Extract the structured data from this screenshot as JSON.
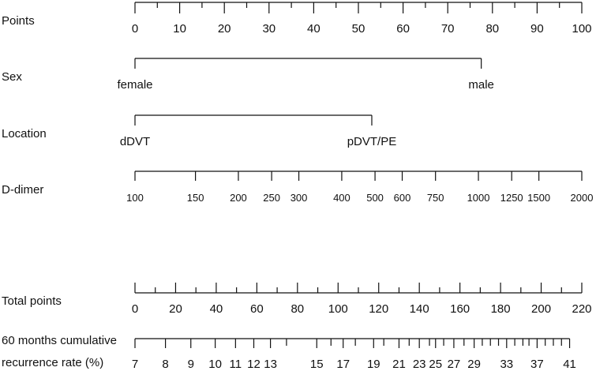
{
  "chart_data": {
    "type": "nomogram",
    "title": "",
    "rows": [
      {
        "key": "points",
        "label": "Points",
        "axis_type": "linear",
        "range": [
          0,
          100
        ],
        "ticks": [
          0,
          10,
          20,
          30,
          40,
          50,
          60,
          70,
          80,
          90,
          100
        ],
        "tick_labels": [
          "0",
          "10",
          "20",
          "30",
          "40",
          "50",
          "60",
          "70",
          "80",
          "90",
          "100"
        ],
        "minor_step": 5
      },
      {
        "key": "sex",
        "label": "Sex",
        "axis_type": "categorical",
        "levels": [
          {
            "label": "female",
            "points": 0
          },
          {
            "label": "male",
            "points": 77.5
          }
        ]
      },
      {
        "key": "location",
        "label": "Location",
        "axis_type": "categorical",
        "levels": [
          {
            "label": "dDVT",
            "points": 0
          },
          {
            "label": "pDVT/PE",
            "points": 53
          }
        ]
      },
      {
        "key": "ddimer",
        "label": "D-dimer",
        "axis_type": "log",
        "ticks": [
          100,
          150,
          200,
          250,
          300,
          400,
          500,
          600,
          750,
          1000,
          1250,
          1500,
          2000
        ],
        "tick_labels": [
          "100",
          "150",
          "200",
          "250",
          "300",
          "400",
          "500",
          "600",
          "750",
          "1000",
          "1250",
          "1500",
          "2000"
        ],
        "points_at_min": 0,
        "points_at_max": 100
      },
      {
        "key": "total",
        "label": "Total points",
        "axis_type": "linear",
        "range": [
          0,
          220
        ],
        "ticks": [
          0,
          20,
          40,
          60,
          80,
          100,
          120,
          140,
          160,
          180,
          200,
          220
        ],
        "tick_labels": [
          "0",
          "20",
          "40",
          "60",
          "80",
          "100",
          "120",
          "140",
          "160",
          "180",
          "200",
          "220"
        ],
        "minor_step": 10
      },
      {
        "key": "recurrence",
        "label": "60 months cumulative",
        "label_line2": "recurrence rate (%)",
        "axis_type": "nonlinear",
        "ticks": [
          {
            "value": 7,
            "total_points": 0
          },
          {
            "value": 8,
            "total_points": 15
          },
          {
            "value": 9,
            "total_points": 27.5
          },
          {
            "value": 10,
            "total_points": 39.5
          },
          {
            "value": 11,
            "total_points": 49.5
          },
          {
            "value": 12,
            "total_points": 58.5
          },
          {
            "value": 13,
            "total_points": 66.7
          },
          {
            "value": 14,
            "total_points": 74.6
          },
          {
            "value": 15,
            "total_points": 89.5
          },
          {
            "value": 16,
            "total_points": 96.5
          },
          {
            "value": 17,
            "total_points": 102.5
          },
          {
            "value": 18,
            "total_points": 108.5
          },
          {
            "value": 19,
            "total_points": 117.5
          },
          {
            "value": 20,
            "total_points": 122.5
          },
          {
            "value": 21,
            "total_points": 130
          },
          {
            "value": 22,
            "total_points": 135
          },
          {
            "value": 23,
            "total_points": 140
          },
          {
            "value": 24,
            "total_points": 145
          },
          {
            "value": 25,
            "total_points": 148
          },
          {
            "value": 26,
            "total_points": 152
          },
          {
            "value": 27,
            "total_points": 157
          },
          {
            "value": 28,
            "total_points": 162
          },
          {
            "value": 29,
            "total_points": 167
          },
          {
            "value": 30,
            "total_points": 171
          },
          {
            "value": 31,
            "total_points": 175
          },
          {
            "value": 32,
            "total_points": 179
          },
          {
            "value": 33,
            "total_points": 183
          },
          {
            "value": 34,
            "total_points": 187
          },
          {
            "value": 35,
            "total_points": 191
          },
          {
            "value": 36,
            "total_points": 194
          },
          {
            "value": 37,
            "total_points": 198
          },
          {
            "value": 38,
            "total_points": 202
          },
          {
            "value": 39,
            "total_points": 206
          },
          {
            "value": 40,
            "total_points": 210
          },
          {
            "value": 41,
            "total_points": 214
          }
        ],
        "labeled_values": [
          7,
          8,
          9,
          10,
          11,
          12,
          13,
          15,
          17,
          19,
          21,
          23,
          25,
          27,
          29,
          33,
          37,
          41
        ]
      }
    ]
  }
}
